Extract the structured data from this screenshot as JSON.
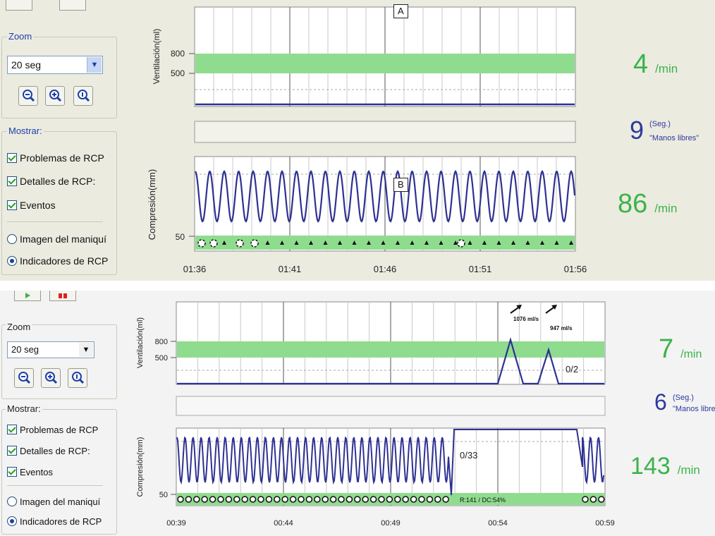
{
  "panels": [
    {
      "zoom_title": "Zoom",
      "zoom_value": "20 seg",
      "mostrar_title": "Mostrar:",
      "checks": [
        "Problemas de RCP",
        "Detalles de RCP:",
        "Eventos"
      ],
      "radios": [
        "Imagen del maniquí",
        "Indicadores de RCP"
      ],
      "radio_selected": 1,
      "vent_label": "Ventilación(ml)",
      "comp_label": "Compresión(mm)",
      "vent_ticks": [
        "800",
        "500"
      ],
      "comp_tick": "50",
      "x_ticks": [
        "01:36",
        "01:41",
        "01:46",
        "01:51",
        "01:56"
      ],
      "vent_rate": "4",
      "vent_unit": "/min",
      "hands_value": "9",
      "hands_sup": "(Seg.)",
      "hands_label": "\"Manos libres\"",
      "comp_rate": "86",
      "comp_unit": "/min",
      "marker_a": "A",
      "marker_b": "B",
      "vent_annotations": [],
      "vent_counter": "",
      "comp_counter": "",
      "comp_bar_label": ""
    },
    {
      "zoom_title": "Zoom",
      "zoom_value": "20 seg",
      "mostrar_title": "Mostrar:",
      "checks": [
        "Problemas de RCP",
        "Detalles de RCP:",
        "Eventos"
      ],
      "radios": [
        "Imagen del maniquí",
        "Indicadores de RCP"
      ],
      "radio_selected": 1,
      "vent_label": "Ventilación(ml)",
      "comp_label": "Compresión(mm)",
      "vent_ticks": [
        "800",
        "500"
      ],
      "comp_tick": "50",
      "x_ticks": [
        "00:39",
        "00:44",
        "00:49",
        "00:54",
        "00:59"
      ],
      "vent_rate": "7",
      "vent_unit": "/min",
      "hands_value": "6",
      "hands_sup": "(Seg.)",
      "hands_label": "\"Manos libres\"",
      "comp_rate": "143",
      "comp_unit": "/min",
      "marker_a": "",
      "marker_b": "",
      "vent_annotations": [
        "1076 ml/s",
        "947 ml/s"
      ],
      "vent_counter": "0/2",
      "comp_counter": "0/33",
      "comp_bar_label": "R:141 / DC:54%"
    }
  ],
  "colors": {
    "trace": "#2e3192",
    "band": "#8fdc8f",
    "rate_green": "#3bb34a"
  }
}
